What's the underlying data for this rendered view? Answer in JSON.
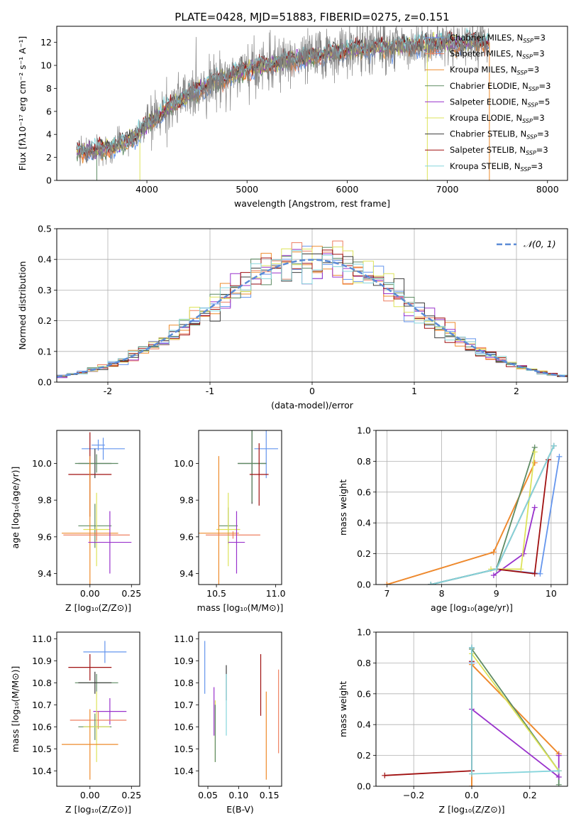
{
  "figure": {
    "title": "PLATE=0428, MJD=51883, FIBERID=0275, z=0.151"
  },
  "colors": {
    "Chabrier MILES": "#6495ed",
    "Salpeter MILES": "#ee7f60",
    "Kroupa MILES": "#ee8b2b",
    "Chabrier ELODIE": "#5e8b63",
    "Salpeter ELODIE": "#9932cc",
    "Kroupa ELODIE": "#dde35a",
    "Chabrier STELIB": "#3c3c3c",
    "Salpeter STELIB": "#a01010",
    "Kroupa STELIB": "#86d5dc",
    "data": "#808080",
    "normal": "#5b8bd6"
  },
  "chart_data": [
    {
      "type": "line",
      "title": "PLATE=0428, MJD=51883, FIBERID=0275, z=0.151",
      "xlabel": "wavelength [Angstrom, rest frame]",
      "ylabel": "Flux [fλ10⁻¹⁷ erg cm⁻² s⁻¹ A⁻¹]",
      "xlim": [
        3100,
        8200
      ],
      "ylim": [
        0,
        13.4
      ],
      "xticks": [
        4000,
        5000,
        6000,
        7000,
        8000
      ],
      "yticks": [
        0,
        2,
        4,
        6,
        8,
        10,
        12
      ],
      "legend_position": "top-right",
      "legend": [
        "Chabrier MILES, N_SSP=3",
        "Salpeter MILES, N_SSP=3",
        "Kroupa MILES, N_SSP=3",
        "Chabrier ELODIE, N_SSP=3",
        "Salpeter ELODIE, N_SSP=5",
        "Kroupa ELODIE, N_SSP=3",
        "Chabrier STELIB, N_SSP=3",
        "Salpeter STELIB, N_SSP=3",
        "Kroupa STELIB, N_SSP=3"
      ],
      "data_trend": {
        "x": [
          3300,
          3500,
          3700,
          3900,
          4000,
          4200,
          4400,
          4600,
          4800,
          5000,
          5200,
          5400,
          5600,
          5800,
          6000,
          6200,
          6400,
          6600,
          6800,
          7000,
          7200,
          7400
        ],
        "y": [
          2.5,
          2.6,
          3.0,
          3.9,
          4.8,
          6.2,
          7.3,
          8.3,
          9.0,
          9.6,
          10.0,
          10.4,
          10.7,
          11.0,
          11.3,
          11.5,
          11.6,
          11.7,
          11.8,
          11.9,
          12.0,
          12.0
        ]
      }
    },
    {
      "type": "bar",
      "xlabel": "(data-model)/error",
      "ylabel": "Normed distribution",
      "xlim": [
        -2.5,
        2.5
      ],
      "ylim": [
        0,
        0.5
      ],
      "xticks": [
        -2,
        -1,
        0,
        1,
        2
      ],
      "yticks": [
        0.0,
        0.1,
        0.2,
        0.3,
        0.4,
        0.5
      ],
      "legend": [
        "𝒩(0, 1)"
      ],
      "legend_position": "top-right",
      "bin_width": 0.1,
      "grid": true
    },
    {
      "type": "scatter",
      "xlabel": "Z [log₁₀(Z/Z⊙)]",
      "ylabel": "age  [log₁₀(age/yr)]",
      "xlim": [
        -0.2,
        0.3
      ],
      "ylim": [
        9.34,
        10.18
      ],
      "xticks": [
        "0.00",
        "0.25"
      ],
      "yticks": [
        "9.4",
        "9.6",
        "9.8",
        "10.0"
      ],
      "points": [
        {
          "series": "Chabrier MILES",
          "x": 0.08,
          "y": 10.08,
          "xerr": 0.13,
          "yerr": 0.06
        },
        {
          "series": "Chabrier MILES",
          "x": 0.05,
          "y": 10.1,
          "xerr": 0.04,
          "yerr": 0.03
        },
        {
          "series": "Chabrier STELIB",
          "x": 0.03,
          "y": 10.0,
          "xerr": 0.1,
          "yerr": 0.08
        },
        {
          "series": "Chabrier ELODIE",
          "x": 0.04,
          "y": 10.0,
          "xerr": 0.13,
          "yerr": 0.05
        },
        {
          "series": "Salpeter STELIB",
          "x": 0.0,
          "y": 9.94,
          "xerr": 0.13,
          "yerr": 0.23
        },
        {
          "series": "Chabrier ELODIE",
          "x": 0.03,
          "y": 9.66,
          "xerr": 0.1,
          "yerr": 0.12
        },
        {
          "series": "Kroupa ELODIE",
          "x": 0.04,
          "y": 9.64,
          "xerr": 0.08,
          "yerr": 0.2
        },
        {
          "series": "Kroupa MILES",
          "x": 0.0,
          "y": 9.62,
          "xerr": 0.17,
          "yerr": 0.42
        },
        {
          "series": "Salpeter MILES",
          "x": 0.04,
          "y": 9.61,
          "xerr": 0.2,
          "yerr": 0.03
        },
        {
          "series": "Salpeter ELODIE",
          "x": 0.12,
          "y": 9.57,
          "xerr": 0.13,
          "yerr": 0.17
        }
      ]
    },
    {
      "type": "scatter",
      "xlabel": "mass [log₁₀(M/M⊙)]",
      "xlim": [
        10.35,
        11.05
      ],
      "ylim": [
        9.34,
        10.18
      ],
      "xticks": [
        "10.5",
        "11.0"
      ],
      "yticks": [
        "9.4",
        "9.6",
        "9.8",
        "10.0"
      ],
      "points": [
        {
          "series": "Chabrier MILES",
          "x": 10.92,
          "y": 10.08,
          "xerr": 0.1,
          "yerr": 0.16
        },
        {
          "series": "Chabrier STELIB",
          "x": 10.8,
          "y": 10.0,
          "xerr": 0.12,
          "yerr": 0.22
        },
        {
          "series": "Chabrier ELODIE",
          "x": 10.8,
          "y": 10.0,
          "xerr": 0.12,
          "yerr": 0.21
        },
        {
          "series": "Salpeter STELIB",
          "x": 10.86,
          "y": 9.94,
          "xerr": 0.08,
          "yerr": 0.17
        },
        {
          "series": "Chabrier ELODIE",
          "x": 10.6,
          "y": 9.66,
          "xerr": 0.08,
          "yerr": 0.1
        },
        {
          "series": "Kroupa ELODIE",
          "x": 10.6,
          "y": 9.64,
          "xerr": 0.1,
          "yerr": 0.2
        },
        {
          "series": "Kroupa MILES",
          "x": 10.52,
          "y": 9.62,
          "xerr": 0.17,
          "yerr": 0.42
        },
        {
          "series": "Salpeter MILES",
          "x": 10.64,
          "y": 9.61,
          "xerr": 0.23,
          "yerr": 0.02
        },
        {
          "series": "Salpeter ELODIE",
          "x": 10.67,
          "y": 9.57,
          "xerr": 0.07,
          "yerr": 0.17
        }
      ]
    },
    {
      "type": "line",
      "xlabel": "age  [log₁₀(age/yr)]",
      "ylabel": "mass weight",
      "xlim": [
        6.8,
        10.3
      ],
      "ylim": [
        0,
        1
      ],
      "xticks": [
        7,
        8,
        9,
        10
      ],
      "yticks": [
        0.0,
        0.2,
        0.4,
        0.6,
        0.8,
        1.0
      ],
      "grid": true,
      "series": [
        {
          "name": "Chabrier MILES",
          "x": [
            7.8,
            9.0,
            9.8,
            10.15
          ],
          "y": [
            0.0,
            0.1,
            0.07,
            0.83
          ]
        },
        {
          "name": "Salpeter MILES",
          "x": [
            7.0,
            8.95,
            9.7
          ],
          "y": [
            0.0,
            0.21,
            0.79
          ]
        },
        {
          "name": "Kroupa MILES",
          "x": [
            7.0,
            8.95,
            9.7
          ],
          "y": [
            0.0,
            0.21,
            0.79
          ]
        },
        {
          "name": "Chabrier ELODIE",
          "x": [
            7.8,
            9.0,
            9.7
          ],
          "y": [
            0.0,
            0.1,
            0.89
          ]
        },
        {
          "name": "Salpeter ELODIE",
          "x": [
            8.95,
            9.5,
            9.7
          ],
          "y": [
            0.06,
            0.2,
            0.5
          ]
        },
        {
          "name": "Kroupa ELODIE",
          "x": [
            8.9,
            9.45,
            9.7
          ],
          "y": [
            0.1,
            0.1,
            0.86
          ]
        },
        {
          "name": "Chabrier STELIB",
          "x": [
            7.8,
            9.0,
            10.05
          ],
          "y": [
            0.0,
            0.1,
            0.9
          ]
        },
        {
          "name": "Salpeter STELIB",
          "x": [
            9.0,
            9.7,
            9.95
          ],
          "y": [
            0.1,
            0.07,
            0.81
          ]
        },
        {
          "name": "Kroupa STELIB",
          "x": [
            7.8,
            9.0,
            10.05
          ],
          "y": [
            0.0,
            0.1,
            0.9
          ]
        }
      ]
    },
    {
      "type": "scatter",
      "xlabel": "Z [log₁₀(Z/Z⊙)]",
      "ylabel": "mass [log₁₀(M/M⊙)]",
      "xlim": [
        -0.2,
        0.3
      ],
      "ylim": [
        10.33,
        11.03
      ],
      "xticks": [
        "0.00",
        "0.25"
      ],
      "yticks": [
        "10.4",
        "10.5",
        "10.6",
        "10.7",
        "10.8",
        "10.9",
        "11.0"
      ],
      "points": [
        {
          "series": "Chabrier MILES",
          "x": 0.09,
          "y": 10.94,
          "xerr": 0.13,
          "yerr": 0.05
        },
        {
          "series": "Salpeter STELIB",
          "x": 0.0,
          "y": 10.87,
          "xerr": 0.13,
          "yerr": 0.06
        },
        {
          "series": "Chabrier ELODIE",
          "x": 0.04,
          "y": 10.8,
          "xerr": 0.13,
          "yerr": 0.04
        },
        {
          "series": "Chabrier STELIB",
          "x": 0.03,
          "y": 10.8,
          "xerr": 0.1,
          "yerr": 0.05
        },
        {
          "series": "Salpeter ELODIE",
          "x": 0.12,
          "y": 10.67,
          "xerr": 0.1,
          "yerr": 0.06
        },
        {
          "series": "Salpeter MILES",
          "x": 0.05,
          "y": 10.63,
          "xerr": 0.17,
          "yerr": 0.04
        },
        {
          "series": "Chabrier ELODIE",
          "x": 0.03,
          "y": 10.6,
          "xerr": 0.1,
          "yerr": 0.06
        },
        {
          "series": "Kroupa ELODIE",
          "x": 0.04,
          "y": 10.6,
          "xerr": 0.08,
          "yerr": 0.16
        },
        {
          "series": "Kroupa MILES",
          "x": 0.0,
          "y": 10.52,
          "xerr": 0.17,
          "yerr": 0.16
        }
      ]
    },
    {
      "type": "scatter",
      "xlabel": "E(B-V)",
      "xlim": [
        0.035,
        0.17
      ],
      "ylim": [
        10.33,
        11.03
      ],
      "xticks": [
        "0.05",
        "0.10",
        "0.15"
      ],
      "yticks": [
        "10.4",
        "10.5",
        "10.6",
        "10.7",
        "10.8",
        "10.9",
        "11.0"
      ],
      "points": [
        {
          "series": "Chabrier MILES",
          "x": 0.045,
          "y": 10.87,
          "yerr": 0.12
        },
        {
          "series": "Salpeter ELODIE",
          "x": 0.06,
          "y": 10.67,
          "yerr": 0.11
        },
        {
          "series": "Kroupa ELODIE",
          "x": 0.062,
          "y": 10.58,
          "yerr": 0.14
        },
        {
          "series": "Chabrier ELODIE",
          "x": 0.062,
          "y": 10.57,
          "yerr": 0.13
        },
        {
          "series": "Chabrier STELIB",
          "x": 0.08,
          "y": 10.8,
          "yerr": 0.08
        },
        {
          "series": "Kroupa STELIB",
          "x": 0.08,
          "y": 10.7,
          "yerr": 0.14
        },
        {
          "series": "Salpeter STELIB",
          "x": 0.136,
          "y": 10.79,
          "yerr": 0.14
        },
        {
          "series": "Kroupa MILES",
          "x": 0.145,
          "y": 10.56,
          "yerr": 0.2
        },
        {
          "series": "Salpeter MILES",
          "x": 0.165,
          "y": 10.67,
          "yerr": 0.19
        }
      ]
    },
    {
      "type": "line",
      "xlabel": "Z [log₁₀(Z/Z⊙)]",
      "ylabel": "mass weight",
      "xlim": [
        -0.33,
        0.33
      ],
      "ylim": [
        0,
        1
      ],
      "xticks": [
        -0.2,
        0.0,
        0.2
      ],
      "yticks": [
        0.0,
        0.2,
        0.4,
        0.6,
        0.8,
        1.0
      ],
      "grid": true,
      "series": [
        {
          "name": "Chabrier MILES",
          "x": [
            0.0,
            0.0,
            0.0
          ],
          "y": [
            0.9,
            0.8,
            0.1
          ]
        },
        {
          "name": "Salpeter MILES",
          "x": [
            0.0,
            0.0,
            0.3
          ],
          "y": [
            0.0,
            0.79,
            0.21
          ]
        },
        {
          "name": "Kroupa MILES",
          "x": [
            0.0,
            0.0,
            0.3
          ],
          "y": [
            0.0,
            0.79,
            0.21
          ]
        },
        {
          "name": "Chabrier ELODIE",
          "x": [
            0.0,
            0.3,
            0.3
          ],
          "y": [
            0.89,
            0.1,
            0.01
          ]
        },
        {
          "name": "Salpeter ELODIE",
          "x": [
            0.0,
            0.3,
            0.3
          ],
          "y": [
            0.5,
            0.06,
            0.2
          ]
        },
        {
          "name": "Kroupa ELODIE",
          "x": [
            0.0,
            0.3
          ],
          "y": [
            0.86,
            0.1
          ]
        },
        {
          "name": "Chabrier STELIB",
          "x": [
            0.0,
            0.0
          ],
          "y": [
            0.9,
            0.1
          ]
        },
        {
          "name": "Salpeter STELIB",
          "x": [
            -0.3,
            0.0,
            0.0
          ],
          "y": [
            0.07,
            0.1,
            0.81
          ]
        },
        {
          "name": "Kroupa STELIB",
          "x": [
            0.0,
            0.0,
            0.3
          ],
          "y": [
            0.9,
            0.08,
            0.1
          ]
        }
      ]
    }
  ]
}
